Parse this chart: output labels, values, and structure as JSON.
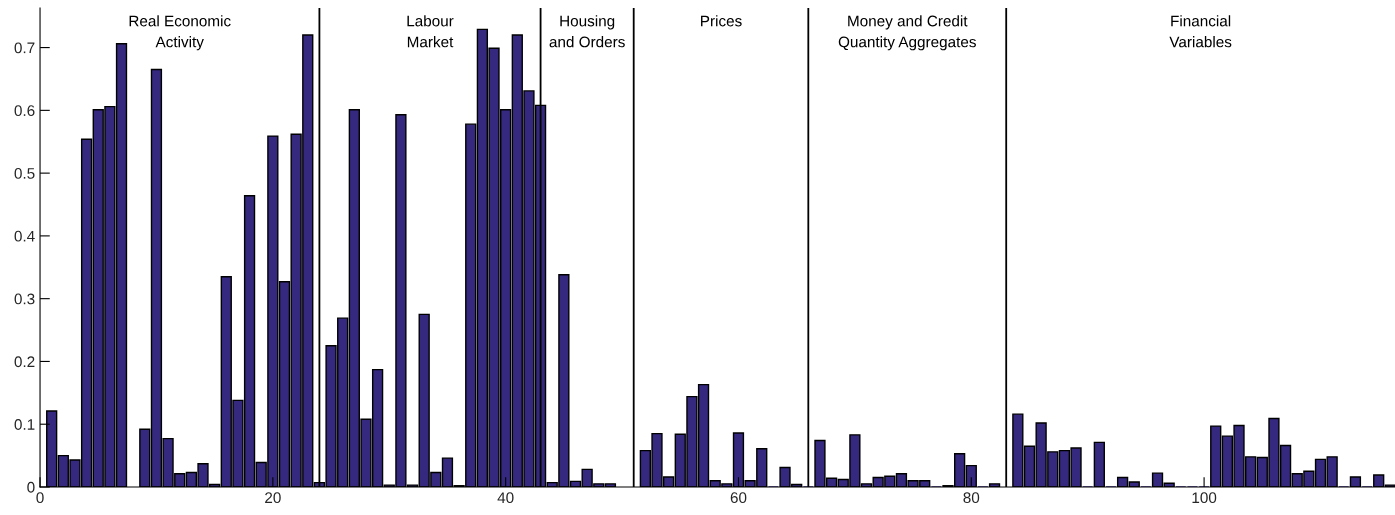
{
  "chart_data": {
    "type": "bar",
    "x": [
      1,
      2,
      3,
      4,
      5,
      6,
      7,
      8,
      9,
      10,
      11,
      12,
      13,
      14,
      15,
      16,
      17,
      18,
      19,
      20,
      21,
      22,
      23,
      24,
      25,
      26,
      27,
      28,
      29,
      30,
      31,
      32,
      33,
      34,
      35,
      36,
      37,
      38,
      39,
      40,
      41,
      42,
      43,
      44,
      45,
      46,
      47,
      48,
      49,
      50,
      51,
      52,
      53,
      54,
      55,
      56,
      57,
      58,
      59,
      60,
      61,
      62,
      63,
      64,
      65,
      66,
      67,
      68,
      69,
      70,
      71,
      72,
      73,
      74,
      75,
      76,
      77,
      78,
      79,
      80,
      81,
      82,
      83,
      84,
      85,
      86,
      87,
      88,
      89,
      90,
      91,
      92,
      93,
      94,
      95,
      96,
      97,
      98,
      99,
      100,
      101,
      102,
      103,
      104,
      105,
      106,
      107,
      108,
      109,
      110,
      111,
      112,
      113,
      114,
      115,
      116
    ],
    "values": [
      0.121,
      0.05,
      0.043,
      0.554,
      0.601,
      0.606,
      0.706,
      null,
      0.092,
      0.665,
      0.077,
      0.021,
      0.023,
      0.037,
      0.004,
      0.335,
      0.138,
      0.464,
      0.039,
      0.559,
      0.327,
      0.562,
      0.72,
      0.007,
      0.225,
      0.269,
      0.601,
      0.108,
      0.187,
      0.003,
      0.593,
      0.003,
      0.275,
      0.023,
      0.046,
      0.002,
      0.578,
      0.729,
      0.699,
      0.601,
      0.72,
      0.631,
      0.608,
      0.007,
      0.338,
      0.009,
      0.028,
      0.005,
      0.005,
      null,
      null,
      0.058,
      0.085,
      0.016,
      0.084,
      0.144,
      0.163,
      0.01,
      0.005,
      0.086,
      0.01,
      0.061,
      0.0,
      0.031,
      0.004,
      0.0,
      0.074,
      0.014,
      0.012,
      0.083,
      0.005,
      0.015,
      0.017,
      0.021,
      0.01,
      0.01,
      0.0,
      0.002,
      0.053,
      0.034,
      0.0,
      0.005,
      null,
      0.116,
      0.065,
      0.102,
      0.056,
      0.058,
      0.062,
      0.0,
      0.071,
      0.0,
      0.015,
      0.008,
      0.0,
      0.022,
      0.006,
      0.0,
      0.0,
      0.0,
      0.097,
      0.081,
      0.098,
      0.048,
      0.047,
      0.109,
      0.066,
      0.021,
      0.025,
      0.044,
      0.048,
      0.0,
      0.016,
      0.0,
      0.019,
      0.003
    ],
    "color": "#35297f",
    "xlim": [
      0,
      116.4
    ],
    "ylim": [
      0,
      0.763
    ],
    "xticks": [
      0,
      20,
      40,
      60,
      80,
      100
    ],
    "yticks": [
      0,
      0.1,
      0.2,
      0.3,
      0.4,
      0.5,
      0.6,
      0.7
    ],
    "grid": false,
    "legend": false,
    "ref_lines": [
      {
        "axis": "x",
        "value": 24,
        "color": "#000000"
      },
      {
        "axis": "x",
        "value": 43,
        "color": "#000000"
      },
      {
        "axis": "x",
        "value": 51,
        "color": "#000000"
      },
      {
        "axis": "x",
        "value": 66,
        "color": "#000000"
      },
      {
        "axis": "x",
        "value": 83,
        "color": "#000000"
      }
    ],
    "annotations": [
      "Real Economic\nActivity",
      "Labour\nMarket",
      "Housing\nand Orders",
      "Prices",
      "Money and Credit\nQuantity Aggregates",
      "Financial\nVariables"
    ]
  }
}
